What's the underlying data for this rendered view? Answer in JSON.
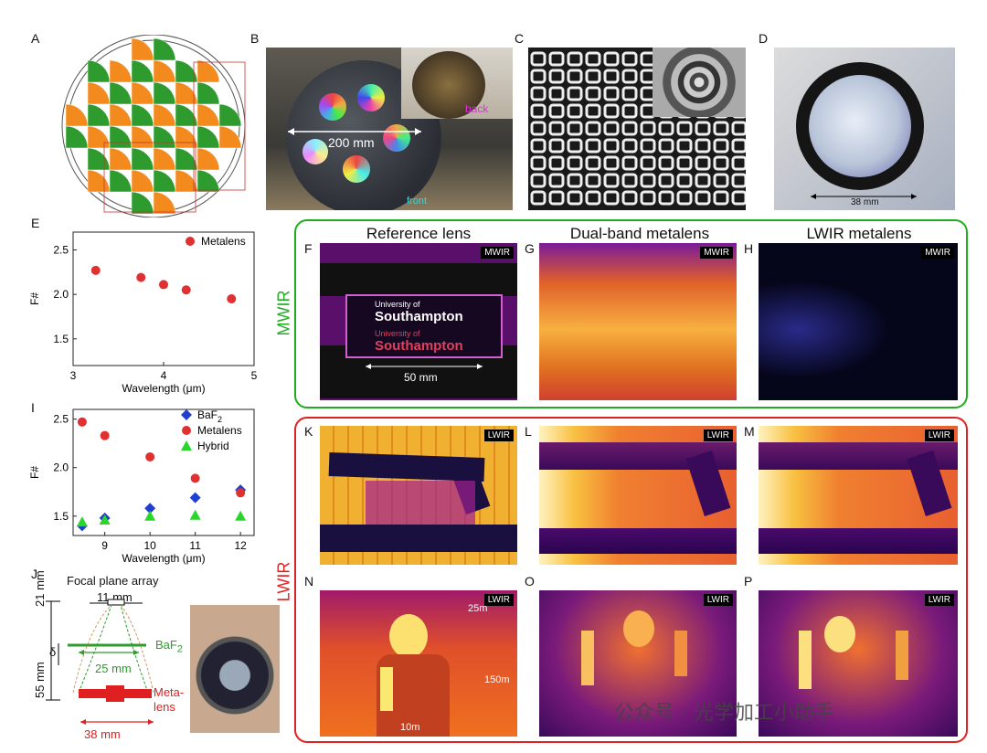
{
  "panels": {
    "A": "A",
    "B": "B",
    "C": "C",
    "D": "D",
    "E": "E",
    "F": "F",
    "G": "G",
    "H": "H",
    "I": "I",
    "J": "J",
    "K": "K",
    "L": "L",
    "M": "M",
    "N": "N",
    "O": "O",
    "P": "P"
  },
  "panel_b": {
    "dimension": "200 mm",
    "back": "back",
    "front": "front"
  },
  "panel_d": {
    "dimension": "38 mm"
  },
  "columns": {
    "reference": "Reference lens",
    "dual": "Dual-band metalens",
    "lwir": "LWIR metalens"
  },
  "rows": {
    "mwir": "MWIR",
    "lwir": "LWIR"
  },
  "tags": {
    "mwir": "MWIR",
    "lwir": "LWIR"
  },
  "panel_f": {
    "uni1": "University of",
    "sot1": "Southampton",
    "uni2": "University of",
    "sot2": "Southampton",
    "scale": "50 mm"
  },
  "panel_n": {
    "d1": "25m",
    "d2": "150m",
    "d3": "10m"
  },
  "panel_j": {
    "fpa": "Focal plane array",
    "fpa_w": "11 mm",
    "h21": "21 mm",
    "h55": "55 mm",
    "delta": "δ",
    "baf2": "BaF",
    "baf2_sub": "2",
    "w25": "25 mm",
    "meta1": "Meta-",
    "meta2": "lens",
    "w38": "38 mm"
  },
  "watermark": "公众号 · 光学加工小助手",
  "colors": {
    "green": "#22aa22",
    "red": "#dd2222",
    "blue": "#1f3fcf",
    "orange": "#f28a1e",
    "plotgreen": "#2e9b2e"
  },
  "chart_data": [
    {
      "type": "scatter",
      "panel": "E",
      "xlabel": "Wavelength (μm)",
      "ylabel": "F#",
      "xlim": [
        3,
        5
      ],
      "ylim": [
        1.2,
        2.7
      ],
      "xticks": [
        3,
        4,
        5
      ],
      "yticks": [
        1.5,
        2.0,
        2.5
      ],
      "series": [
        {
          "name": "Metalens",
          "color": "#e03030",
          "x": [
            3.25,
            3.75,
            4.0,
            4.25,
            4.75
          ],
          "y": [
            2.27,
            2.19,
            2.11,
            2.05,
            1.95
          ]
        }
      ]
    },
    {
      "type": "scatter",
      "panel": "I",
      "xlabel": "Wavelength (μm)",
      "ylabel": "F#",
      "xlim": [
        8.3,
        12.3
      ],
      "ylim": [
        1.3,
        2.6
      ],
      "xticks": [
        9,
        10,
        11,
        12
      ],
      "yticks": [
        1.5,
        2.0,
        2.5
      ],
      "series": [
        {
          "name": "BaF2",
          "name_main": "BaF",
          "name_sub": "2",
          "marker": "diamond",
          "color": "#1f3fcf",
          "x": [
            8.5,
            9,
            10,
            11,
            12
          ],
          "y": [
            1.4,
            1.48,
            1.58,
            1.69,
            1.77
          ]
        },
        {
          "name": "Metalens",
          "name_main": "Metalens",
          "name_sub": "",
          "marker": "circle",
          "color": "#e03030",
          "x": [
            8.5,
            9,
            10,
            11,
            12
          ],
          "y": [
            2.47,
            2.33,
            2.11,
            1.89,
            1.74
          ]
        },
        {
          "name": "Hybrid",
          "name_main": "Hybrid",
          "name_sub": "",
          "marker": "triangle",
          "color": "#2bd62b",
          "x": [
            8.5,
            9,
            10,
            11,
            12
          ],
          "y": [
            1.44,
            1.46,
            1.5,
            1.51,
            1.5
          ]
        }
      ]
    }
  ]
}
